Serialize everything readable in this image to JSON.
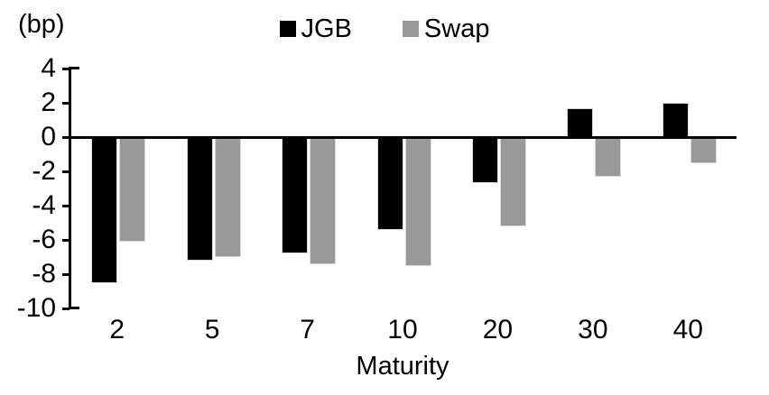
{
  "chart_data": {
    "type": "bar",
    "title": "",
    "unit_label": "(bp)",
    "xlabel": "Maturity",
    "ylabel": "",
    "categories": [
      "2",
      "5",
      "7",
      "10",
      "20",
      "30",
      "40"
    ],
    "series": [
      {
        "name": "JGB",
        "color": "#000000",
        "values": [
          -8.5,
          -7.2,
          -6.8,
          -5.4,
          -2.7,
          1.7,
          2.0
        ]
      },
      {
        "name": "Swap",
        "color": "#999999",
        "values": [
          -6.1,
          -7.0,
          -7.4,
          -7.5,
          -5.2,
          -2.3,
          -1.5
        ]
      }
    ],
    "yticks": [
      4,
      2,
      0,
      -2,
      -4,
      -6,
      -8,
      -10
    ],
    "ylim": [
      -10,
      4
    ],
    "grid": false,
    "legend_position": "top-center",
    "axis_color": "#000000",
    "background_color": "#ffffff"
  }
}
